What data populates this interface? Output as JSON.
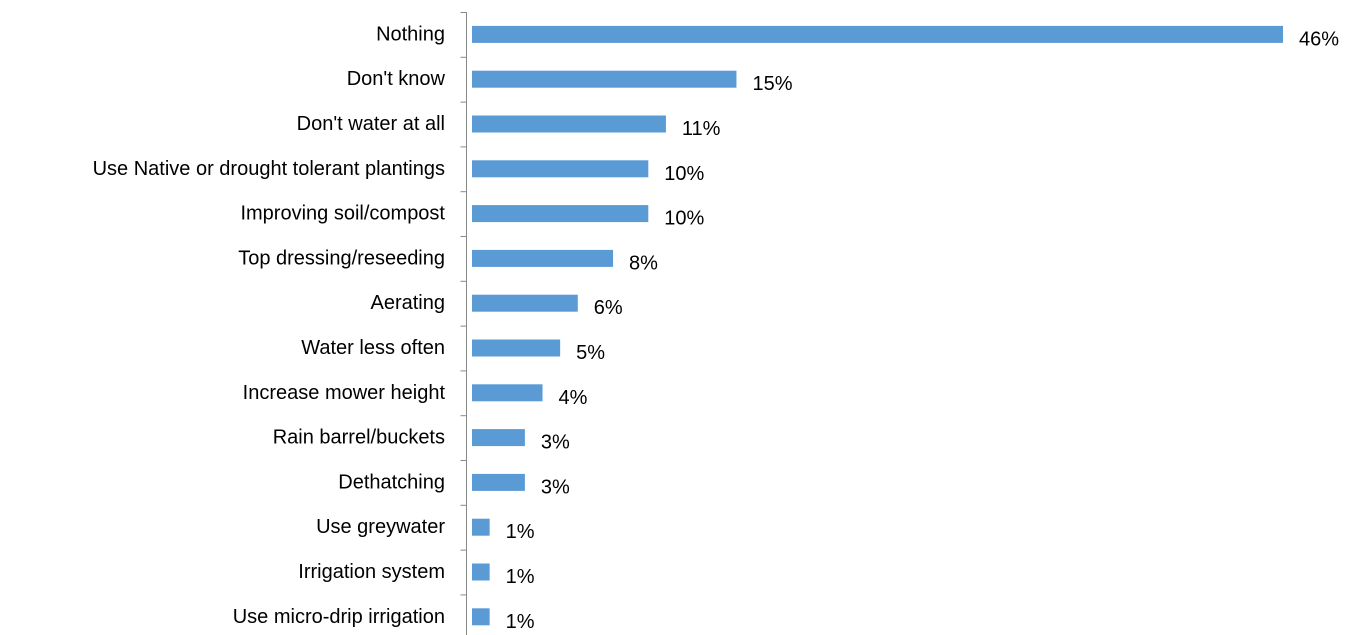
{
  "colors": {
    "bar": "#5B9BD5",
    "axis": "#888888",
    "text": "#000000"
  },
  "chart_data": {
    "type": "bar",
    "orientation": "horizontal",
    "categories": [
      "Nothing",
      "Don't know",
      "Don't water at all",
      "Use Native or drought tolerant plantings",
      "Improving soil/compost",
      "Top dressing/reseeding",
      "Aerating",
      "Water less often",
      "Increase mower height",
      "Rain barrel/buckets",
      "Dethatching",
      "Use greywater",
      "Irrigation system",
      "Use micro-drip irrigation"
    ],
    "values": [
      46,
      15,
      11,
      10,
      10,
      8,
      6,
      5,
      4,
      3,
      3,
      1,
      1,
      1
    ],
    "data_labels": [
      "46%",
      "15%",
      "11%",
      "10%",
      "10%",
      "8%",
      "6%",
      "5%",
      "4%",
      "3%",
      "3%",
      "1%",
      "1%",
      "1%"
    ],
    "title": "",
    "xlabel": "",
    "ylabel": "",
    "unit": "%",
    "xlim": [
      0,
      46
    ],
    "grid": false,
    "legend": "none"
  }
}
